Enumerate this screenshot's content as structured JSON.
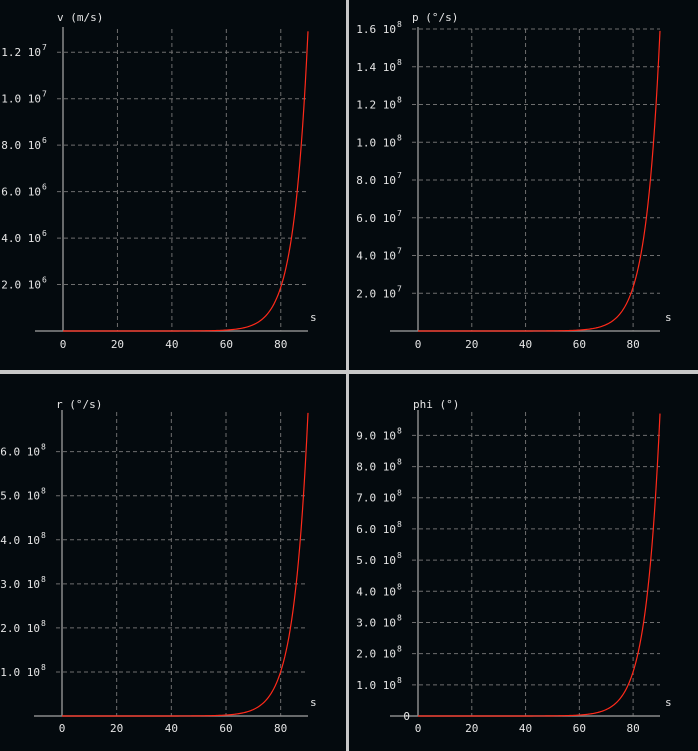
{
  "chart_data": [
    {
      "type": "line",
      "ylabel": "v (m/s)",
      "xlabel": "s",
      "xlim": [
        0,
        90
      ],
      "ylim": [
        0,
        13000000
      ],
      "xticks": [
        "0",
        "20",
        "40",
        "60",
        "80"
      ],
      "yticks": [
        {
          "mant": "1.2",
          "exp": "7",
          "v": 12000000
        },
        {
          "mant": "1.0",
          "exp": "7",
          "v": 10000000
        },
        {
          "mant": "8.0",
          "exp": "6",
          "v": 8000000
        },
        {
          "mant": "6.0",
          "exp": "6",
          "v": 6000000
        },
        {
          "mant": "4.0",
          "exp": "6",
          "v": 4000000
        },
        {
          "mant": "2.0",
          "exp": "6",
          "v": 2000000
        }
      ],
      "series": [
        {
          "color": "#ff2a1a",
          "end": 12900000
        }
      ]
    },
    {
      "type": "line",
      "ylabel": "p (°/s)",
      "xlabel": "s",
      "xlim": [
        0,
        90
      ],
      "ylim": [
        0,
        160000000
      ],
      "xticks": [
        "0",
        "20",
        "40",
        "60",
        "80"
      ],
      "yticks": [
        {
          "mant": "1.6",
          "exp": "8",
          "v": 160000000
        },
        {
          "mant": "1.4",
          "exp": "8",
          "v": 140000000
        },
        {
          "mant": "1.2",
          "exp": "8",
          "v": 120000000
        },
        {
          "mant": "1.0",
          "exp": "8",
          "v": 100000000
        },
        {
          "mant": "8.0",
          "exp": "7",
          "v": 80000000
        },
        {
          "mant": "6.0",
          "exp": "7",
          "v": 60000000
        },
        {
          "mant": "4.0",
          "exp": "7",
          "v": 40000000
        },
        {
          "mant": "2.0",
          "exp": "7",
          "v": 20000000
        }
      ],
      "series": [
        {
          "color": "#ff2a1a",
          "end": 159000000
        }
      ]
    },
    {
      "type": "line",
      "ylabel": "r (°/s)",
      "xlabel": "s",
      "xlim": [
        0,
        90
      ],
      "ylim": [
        0,
        690000000
      ],
      "xticks": [
        "0",
        "20",
        "40",
        "60",
        "80"
      ],
      "yticks": [
        {
          "mant": "6.0",
          "exp": "8",
          "v": 600000000
        },
        {
          "mant": "5.0",
          "exp": "8",
          "v": 500000000
        },
        {
          "mant": "4.0",
          "exp": "8",
          "v": 400000000
        },
        {
          "mant": "3.0",
          "exp": "8",
          "v": 300000000
        },
        {
          "mant": "2.0",
          "exp": "8",
          "v": 200000000
        },
        {
          "mant": "1.0",
          "exp": "8",
          "v": 100000000
        }
      ],
      "series": [
        {
          "color": "#ff2a1a",
          "end": 688000000
        }
      ]
    },
    {
      "type": "line",
      "ylabel": "phi (°)",
      "xlabel": "s",
      "xlim": [
        0,
        90
      ],
      "ylim": [
        0,
        975000000
      ],
      "xticks": [
        "0",
        "20",
        "40",
        "60",
        "80"
      ],
      "yticks": [
        {
          "mant": "9.0",
          "exp": "8",
          "v": 900000000
        },
        {
          "mant": "8.0",
          "exp": "8",
          "v": 800000000
        },
        {
          "mant": "7.0",
          "exp": "8",
          "v": 700000000
        },
        {
          "mant": "6.0",
          "exp": "8",
          "v": 600000000
        },
        {
          "mant": "5.0",
          "exp": "8",
          "v": 500000000
        },
        {
          "mant": "4.0",
          "exp": "8",
          "v": 400000000
        },
        {
          "mant": "3.0",
          "exp": "8",
          "v": 300000000
        },
        {
          "mant": "2.0",
          "exp": "8",
          "v": 200000000
        },
        {
          "mant": "1.0",
          "exp": "8",
          "v": 100000000
        },
        {
          "mant": "0",
          "exp": "",
          "v": 0
        }
      ],
      "series": [
        {
          "color": "#ff2a1a",
          "end": 970000000
        }
      ]
    }
  ],
  "colors": {
    "background": "#040a0e",
    "separator": "#c8c8c8",
    "axis": "#8a8a8a",
    "grid": "#6e6e6e",
    "text": "#e6e6e6",
    "curve": "#ff2a1a"
  }
}
